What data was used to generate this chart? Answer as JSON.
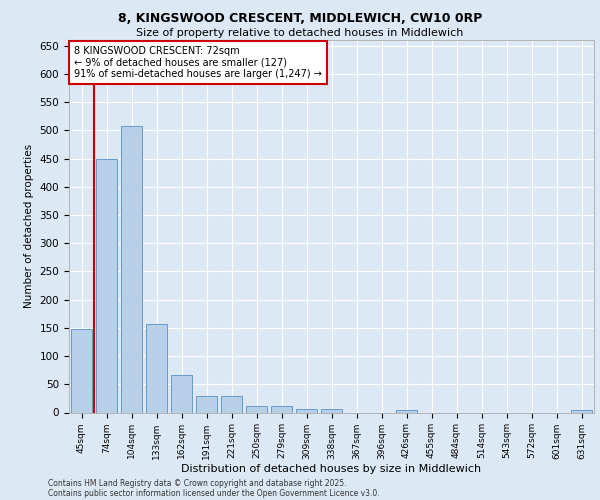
{
  "title_line1": "8, KINGSWOOD CRESCENT, MIDDLEWICH, CW10 0RP",
  "title_line2": "Size of property relative to detached houses in Middlewich",
  "xlabel": "Distribution of detached houses by size in Middlewich",
  "ylabel": "Number of detached properties",
  "categories": [
    "45sqm",
    "74sqm",
    "104sqm",
    "133sqm",
    "162sqm",
    "191sqm",
    "221sqm",
    "250sqm",
    "279sqm",
    "309sqm",
    "338sqm",
    "367sqm",
    "396sqm",
    "426sqm",
    "455sqm",
    "484sqm",
    "514sqm",
    "543sqm",
    "572sqm",
    "601sqm",
    "631sqm"
  ],
  "values": [
    148,
    450,
    507,
    157,
    67,
    30,
    30,
    12,
    12,
    7,
    6,
    0,
    0,
    4,
    0,
    0,
    0,
    0,
    0,
    0,
    4
  ],
  "bar_color": "#b8cfe8",
  "bar_edge_color": "#6699cc",
  "property_line_color": "#cc0000",
  "annotation_text": "8 KINGSWOOD CRESCENT: 72sqm\n← 9% of detached houses are smaller (127)\n91% of semi-detached houses are larger (1,247) →",
  "annotation_box_color": "#cc0000",
  "ylim": [
    0,
    660
  ],
  "yticks": [
    0,
    50,
    100,
    150,
    200,
    250,
    300,
    350,
    400,
    450,
    500,
    550,
    600,
    650
  ],
  "footer_line1": "Contains HM Land Registry data © Crown copyright and database right 2025.",
  "footer_line2": "Contains public sector information licensed under the Open Government Licence v3.0.",
  "bg_color": "#dde8f5",
  "plot_bg_color": "#dde8f5"
}
